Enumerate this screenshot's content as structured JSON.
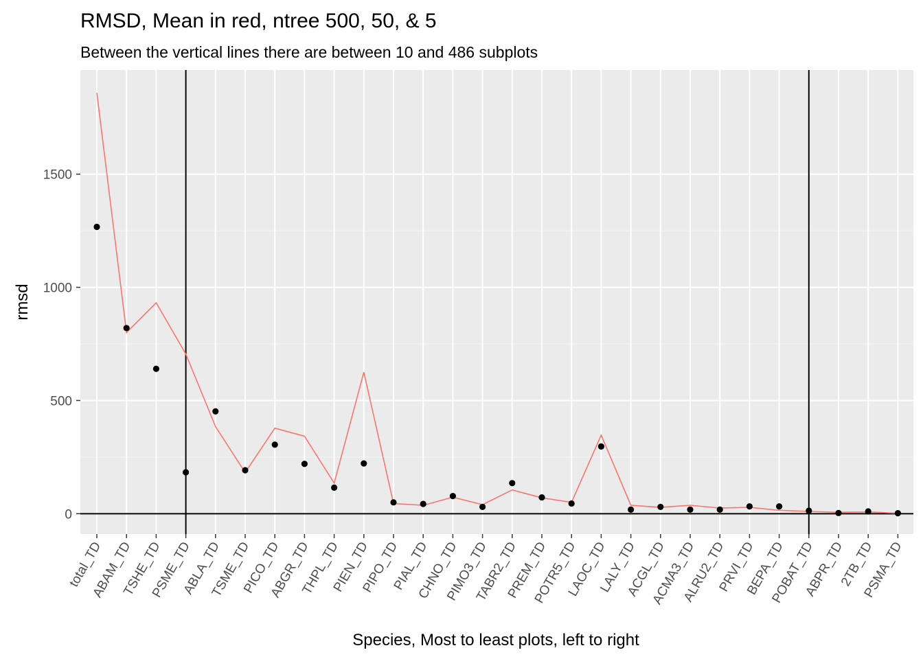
{
  "chart_data": {
    "type": "scatter",
    "title": "RMSD, Mean in red, ntree 500, 50, & 5",
    "subtitle": "Between the vertical lines there are between 10 and 486 subplots",
    "xlabel": "Species, Most to least plots, left to right",
    "ylabel": "rmsd",
    "categories": [
      "total_TD",
      "ABAM_TD",
      "TSHE_TD",
      "PSME_TD",
      "ABLA_TD",
      "TSME_TD",
      "PICO_TD",
      "ABGR_TD",
      "THPL_TD",
      "PIEN_TD",
      "PIPO_TD",
      "PIAL_TD",
      "CHNO_TD",
      "PIMO3_TD",
      "TABR2_TD",
      "PREM_TD",
      "POTR5_TD",
      "LAOC_TD",
      "LALY_TD",
      "ACGL_TD",
      "ACMA3_TD",
      "ALRU2_TD",
      "PRVI_TD",
      "BEPA_TD",
      "POBAT_TD",
      "ABPR_TD",
      "2TB_TD",
      "PSMA_TD"
    ],
    "yticks": [
      0,
      500,
      1000,
      1500
    ],
    "ylim": [
      -90,
      1960
    ],
    "series": [
      {
        "type": "points",
        "color": "#000000",
        "values": [
          1267,
          820,
          640,
          183,
          452,
          192,
          305,
          220,
          115,
          222,
          50,
          43,
          78,
          30,
          135,
          72,
          45,
          297,
          18,
          30,
          18,
          18,
          32,
          32,
          13,
          3,
          10,
          2
        ]
      },
      {
        "type": "line",
        "color": "#F8766D",
        "values": [
          1860,
          800,
          932,
          705,
          385,
          182,
          378,
          342,
          135,
          625,
          45,
          37,
          73,
          40,
          105,
          70,
          50,
          347,
          37,
          28,
          37,
          25,
          28,
          15,
          10,
          6,
          8,
          2
        ]
      }
    ],
    "reference_lines": {
      "vertical_at": [
        "PSME_TD",
        "POBAT_TD"
      ],
      "horizontal_at": 0
    },
    "panel_background": "#EBEBEB",
    "grid": true
  }
}
